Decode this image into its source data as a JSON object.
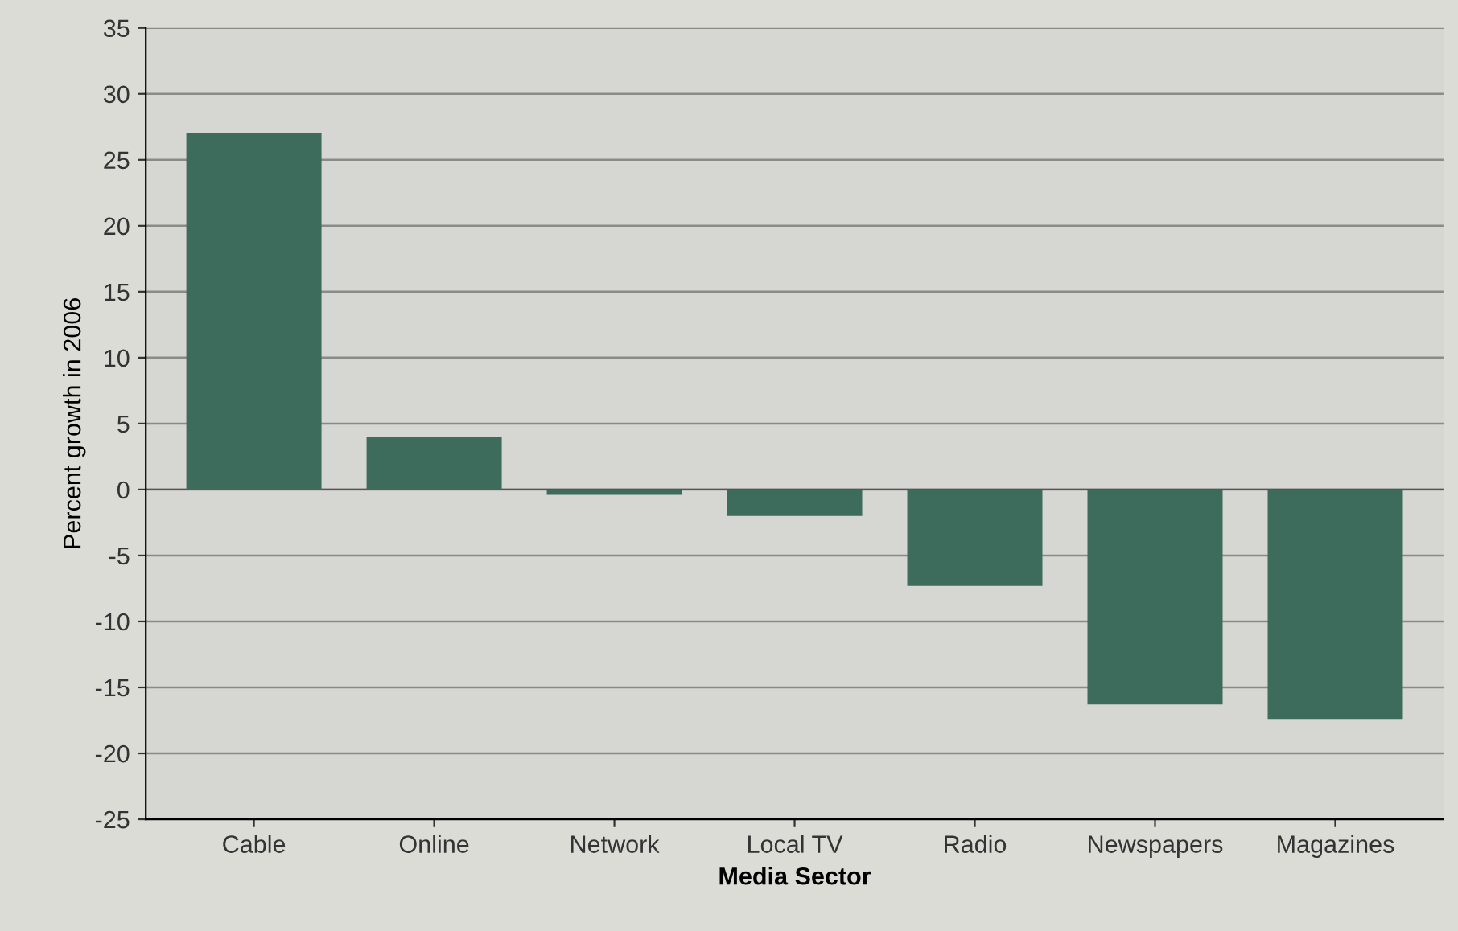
{
  "chart_data": {
    "type": "bar",
    "xlabel": "Media Sector",
    "ylabel": "Percent growth in 2006",
    "categories": [
      "Cable",
      "Online",
      "Network",
      "Local TV",
      "Radio",
      "Newspapers",
      "Magazines"
    ],
    "values": [
      27,
      4,
      -0.4,
      -2,
      -7.3,
      -16.3,
      -17.4
    ],
    "color": "#3d6b5c",
    "ylim": [
      -25,
      35
    ],
    "yticks": [
      -25,
      -20,
      -15,
      -10,
      -5,
      0,
      5,
      10,
      15,
      20,
      25,
      30,
      35
    ],
    "grid": "y"
  }
}
